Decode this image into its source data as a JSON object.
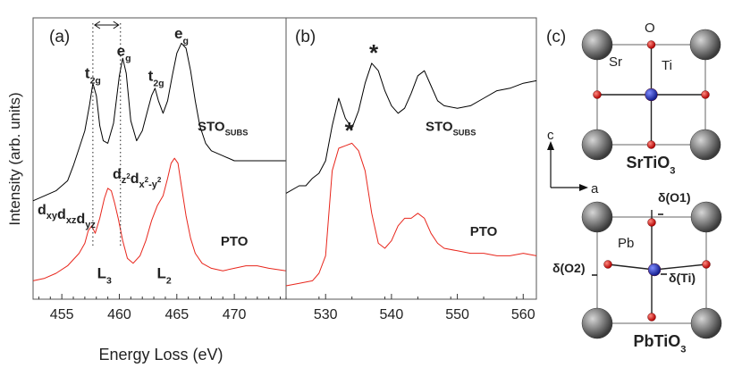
{
  "chart_data": [
    {
      "id": "a",
      "type": "line",
      "panel_label": "(a)",
      "xlabel": "Energy Loss (eV)",
      "ylabel": "Intensity (arb. units)",
      "xlim": [
        452.5,
        474.5
      ],
      "ylim": [
        0,
        1
      ],
      "xticks": [
        455,
        460,
        465,
        470
      ],
      "xtick_labels": [
        "455",
        "460",
        "465",
        "470"
      ],
      "series": [
        {
          "name": "STO_SUBS",
          "color": "#000000",
          "x": [
            452.5,
            453.5,
            454.5,
            455.5,
            456.0,
            456.5,
            457.0,
            457.4,
            457.7,
            458.0,
            458.3,
            458.6,
            459.0,
            459.5,
            460.0,
            460.3,
            460.6,
            461.0,
            461.5,
            462.0,
            462.4,
            462.8,
            463.1,
            463.4,
            463.8,
            464.2,
            464.6,
            465.0,
            465.4,
            465.8,
            466.2,
            466.6,
            467.0,
            467.5,
            468.0,
            469.0,
            470.0,
            471.0,
            472.0,
            473.0,
            474.5
          ],
          "y": [
            0.34,
            0.36,
            0.38,
            0.42,
            0.48,
            0.55,
            0.62,
            0.72,
            0.81,
            0.76,
            0.64,
            0.58,
            0.57,
            0.65,
            0.84,
            0.91,
            0.85,
            0.66,
            0.58,
            0.62,
            0.69,
            0.76,
            0.79,
            0.74,
            0.69,
            0.74,
            0.84,
            0.93,
            0.97,
            0.95,
            0.86,
            0.74,
            0.64,
            0.57,
            0.54,
            0.52,
            0.5,
            0.5,
            0.5,
            0.5,
            0.5
          ]
        },
        {
          "name": "PTO",
          "color": "#e8261c",
          "x": [
            452.5,
            453.5,
            454.5,
            455.5,
            456.5,
            457.0,
            457.3,
            457.6,
            457.9,
            458.3,
            458.7,
            459.0,
            459.3,
            459.6,
            459.9,
            460.3,
            460.7,
            461.2,
            461.8,
            462.3,
            462.8,
            463.3,
            463.8,
            464.2,
            464.5,
            464.8,
            465.1,
            465.4,
            465.8,
            466.2,
            466.6,
            467.2,
            468.0,
            469.0,
            470.0,
            471.0,
            472.0,
            473.0,
            474.5
          ],
          "y": [
            0.02,
            0.03,
            0.05,
            0.08,
            0.13,
            0.17,
            0.22,
            0.24,
            0.21,
            0.27,
            0.35,
            0.39,
            0.38,
            0.33,
            0.27,
            0.18,
            0.11,
            0.09,
            0.12,
            0.18,
            0.26,
            0.32,
            0.36,
            0.43,
            0.49,
            0.51,
            0.49,
            0.4,
            0.28,
            0.19,
            0.13,
            0.09,
            0.07,
            0.06,
            0.07,
            0.08,
            0.08,
            0.07,
            0.06
          ]
        }
      ],
      "annotations": [
        {
          "text": "t",
          "sub": "2g",
          "x": 457.7,
          "y": 0.83
        },
        {
          "text": "e",
          "sub": "g",
          "x": 460.4,
          "y": 0.92
        },
        {
          "text": "t",
          "sub": "2g",
          "x": 463.2,
          "y": 0.82
        },
        {
          "text": "e",
          "sub": "g",
          "x": 465.4,
          "y": 0.99
        },
        {
          "text": "STO",
          "sub": "SUBS",
          "x": 469.0,
          "y": 0.62
        },
        {
          "text": "PTO",
          "x": 470.0,
          "y": 0.16
        },
        {
          "text": "L",
          "sub": "3",
          "x": 458.7,
          "y": 0.03
        },
        {
          "text": "L",
          "sub": "2",
          "x": 463.9,
          "y": 0.03
        }
      ],
      "orbital_labels_a": [
        "d",
        "xy",
        "d",
        "xz",
        "d",
        "yz"
      ],
      "orbital_labels_b": [
        "d",
        "z",
        "2",
        "d",
        "x",
        "2",
        "-y",
        "2"
      ],
      "dotted_lines_x": [
        457.7,
        460.1
      ],
      "arrow_x": [
        457.7,
        460.1
      ]
    },
    {
      "id": "b",
      "type": "line",
      "panel_label": "(b)",
      "xlim": [
        524,
        562
      ],
      "ylim": [
        0,
        1
      ],
      "xticks": [
        530,
        540,
        550,
        560
      ],
      "xtick_labels": [
        "530",
        "540",
        "550",
        "560"
      ],
      "series": [
        {
          "name": "STO_SUBS",
          "color": "#000000",
          "x": [
            524,
            526,
            527,
            528,
            529,
            530,
            531,
            532,
            533,
            534,
            535,
            536,
            537,
            538,
            539,
            540,
            541,
            542,
            543,
            544,
            545,
            546,
            547,
            548,
            550,
            552,
            554,
            556,
            558,
            560,
            562
          ],
          "y": [
            0.37,
            0.4,
            0.4,
            0.43,
            0.45,
            0.5,
            0.64,
            0.75,
            0.67,
            0.63,
            0.7,
            0.81,
            0.89,
            0.86,
            0.78,
            0.72,
            0.69,
            0.71,
            0.77,
            0.84,
            0.86,
            0.8,
            0.74,
            0.72,
            0.71,
            0.72,
            0.75,
            0.78,
            0.79,
            0.81,
            0.82
          ]
        },
        {
          "name": "PTO",
          "color": "#e8261c",
          "x": [
            524,
            526,
            528,
            529,
            530,
            531,
            532,
            533,
            534,
            535,
            536,
            537,
            538,
            539,
            540,
            541,
            542,
            543,
            544,
            545,
            546,
            547,
            548,
            550,
            552,
            554,
            556,
            558,
            560,
            562
          ],
          "y": [
            0.0,
            0.01,
            0.02,
            0.05,
            0.12,
            0.46,
            0.55,
            0.56,
            0.57,
            0.54,
            0.46,
            0.29,
            0.17,
            0.15,
            0.18,
            0.24,
            0.27,
            0.27,
            0.29,
            0.27,
            0.21,
            0.17,
            0.15,
            0.14,
            0.13,
            0.13,
            0.12,
            0.12,
            0.13,
            0.12
          ]
        }
      ],
      "annotations": [
        {
          "text": "*",
          "x": 537.3,
          "y": 0.95
        },
        {
          "text": "*",
          "x": 533.6,
          "y": 0.64
        },
        {
          "text": "STO",
          "sub": "SUBS",
          "x": 549.0,
          "y": 0.62
        },
        {
          "text": "PTO",
          "x": 554.0,
          "y": 0.2
        }
      ]
    }
  ],
  "panel_c": {
    "label": "(c)",
    "sto": {
      "atom_labels": [
        "O",
        "Sr",
        "Ti"
      ],
      "formula": {
        "text": "SrTiO",
        "sub": "3"
      }
    },
    "axes": {
      "c": "c",
      "a": "a"
    },
    "pto": {
      "atom_labels": [
        "Pb"
      ],
      "displacements": [
        "δ(O1)",
        "δ(O2)",
        "δ(Ti)"
      ],
      "formula": {
        "text": "PbTiO",
        "sub": "3"
      }
    },
    "colors": {
      "cation": "#4a4a4a",
      "oxygen": "#d10000",
      "titanium": "#1a2fc4"
    }
  }
}
